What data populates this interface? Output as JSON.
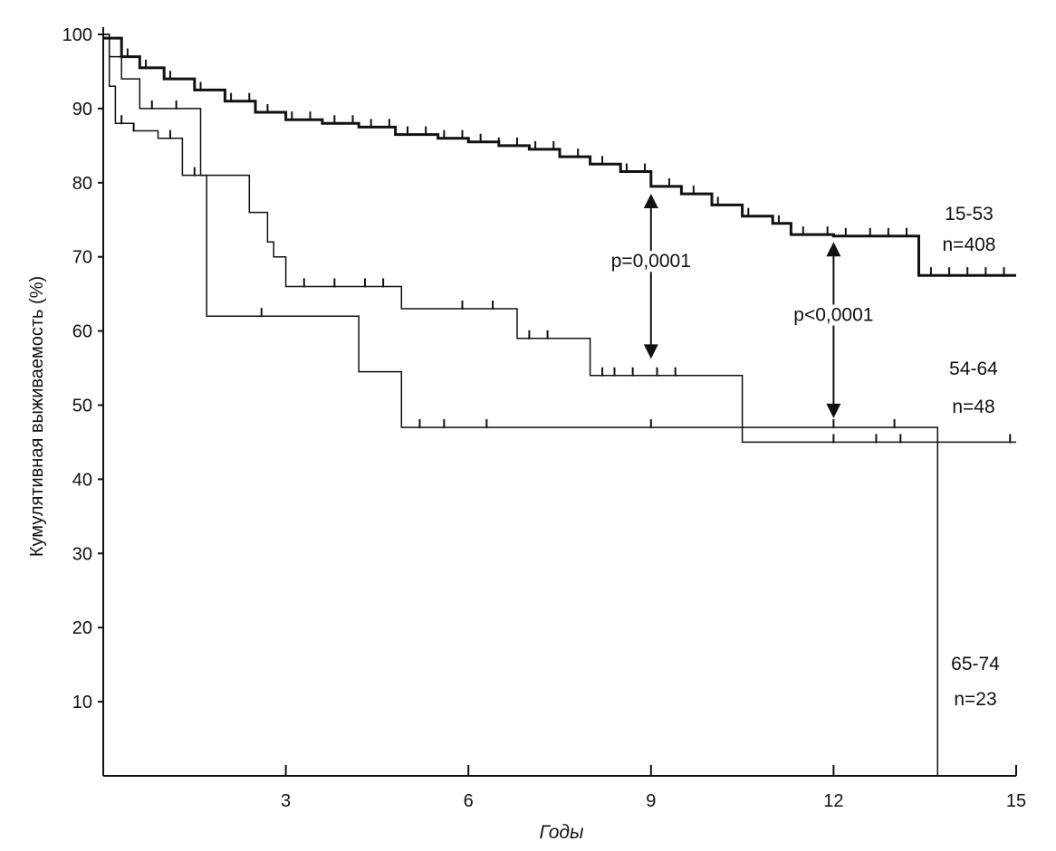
{
  "chart_data": {
    "type": "line",
    "title": "",
    "xlabel": "Годы",
    "ylabel": "Кумулятивная выживаемость (%)",
    "xlim": [
      0,
      15
    ],
    "ylim": [
      0,
      100
    ],
    "x_ticks": [
      3,
      6,
      9,
      12,
      15
    ],
    "y_ticks": [
      10,
      20,
      30,
      40,
      50,
      60,
      70,
      80,
      90,
      100
    ],
    "grid": false,
    "series": [
      {
        "name": "15-53",
        "n_label": "n=408",
        "stroke_width": 3,
        "x": [
          0,
          0.3,
          0.6,
          1.0,
          1.5,
          2.0,
          2.5,
          3.0,
          3.6,
          4.2,
          4.8,
          5.5,
          6.0,
          6.5,
          7.0,
          7.5,
          8.0,
          8.5,
          9.0,
          9.5,
          10.0,
          10.5,
          11.0,
          11.3,
          12.0,
          12.5,
          13.0,
          13.4,
          14.0,
          15.0
        ],
        "values": [
          99.5,
          97,
          95.5,
          94,
          92.5,
          91,
          89.5,
          88.5,
          88,
          87.5,
          86.5,
          86,
          85.5,
          85,
          84.5,
          83.5,
          82.5,
          81.5,
          79.5,
          78.5,
          77,
          75.5,
          74.5,
          73,
          72.8,
          72.8,
          72.8,
          67.5,
          67.5,
          67.5
        ],
        "censor_x": [
          0.4,
          0.7,
          1.1,
          1.6,
          2.1,
          2.4,
          2.7,
          3.1,
          3.4,
          3.8,
          4.1,
          4.4,
          4.7,
          5.0,
          5.3,
          5.6,
          5.9,
          6.2,
          6.5,
          6.8,
          7.1,
          7.4,
          7.8,
          8.2,
          8.6,
          8.9,
          9.3,
          9.7,
          10.1,
          10.6,
          11.1,
          11.5,
          11.9,
          12.2,
          12.6,
          12.9,
          13.2,
          13.6,
          13.9,
          14.2,
          14.5,
          14.8
        ]
      },
      {
        "name": "54-64",
        "n_label": "n=48",
        "stroke_width": 1.5,
        "x": [
          0,
          0.1,
          0.3,
          0.6,
          1.6,
          2.4,
          2.7,
          2.8,
          3.0,
          4.9,
          6.8,
          8.0,
          10.5,
          15.0
        ],
        "values": [
          100,
          97,
          94,
          90,
          81,
          76,
          72,
          70,
          66,
          63,
          59,
          54,
          45,
          45
        ],
        "censor_x": [
          0.8,
          1.2,
          3.3,
          3.8,
          4.3,
          4.6,
          5.9,
          6.4,
          7.0,
          7.3,
          8.2,
          8.4,
          8.7,
          9.1,
          9.4,
          12.0,
          12.7,
          13.1,
          14.9
        ]
      },
      {
        "name": "65-74",
        "n_label": "n=23",
        "stroke_width": 1.5,
        "x": [
          0,
          0.1,
          0.2,
          0.5,
          0.9,
          1.3,
          1.7,
          2.6,
          3.5,
          4.2,
          4.9,
          6.0,
          10.0,
          13.7,
          13.71,
          15.0
        ],
        "values": [
          100,
          93,
          88,
          87,
          86,
          81,
          62,
          62,
          62,
          54.5,
          47,
          47,
          47,
          47,
          0,
          0
        ],
        "censor_x": [
          0.3,
          0.5,
          1.1,
          1.5,
          2.6,
          5.2,
          5.6,
          6.3,
          9.0,
          12.0,
          13.0
        ]
      }
    ],
    "annotations": [
      {
        "text": "p=0,0001",
        "x": 9.0,
        "y_from": 79,
        "y_to": 56
      },
      {
        "text": "p<0,0001",
        "x": 12.0,
        "y_from": 72.5,
        "y_to": 48
      }
    ]
  }
}
